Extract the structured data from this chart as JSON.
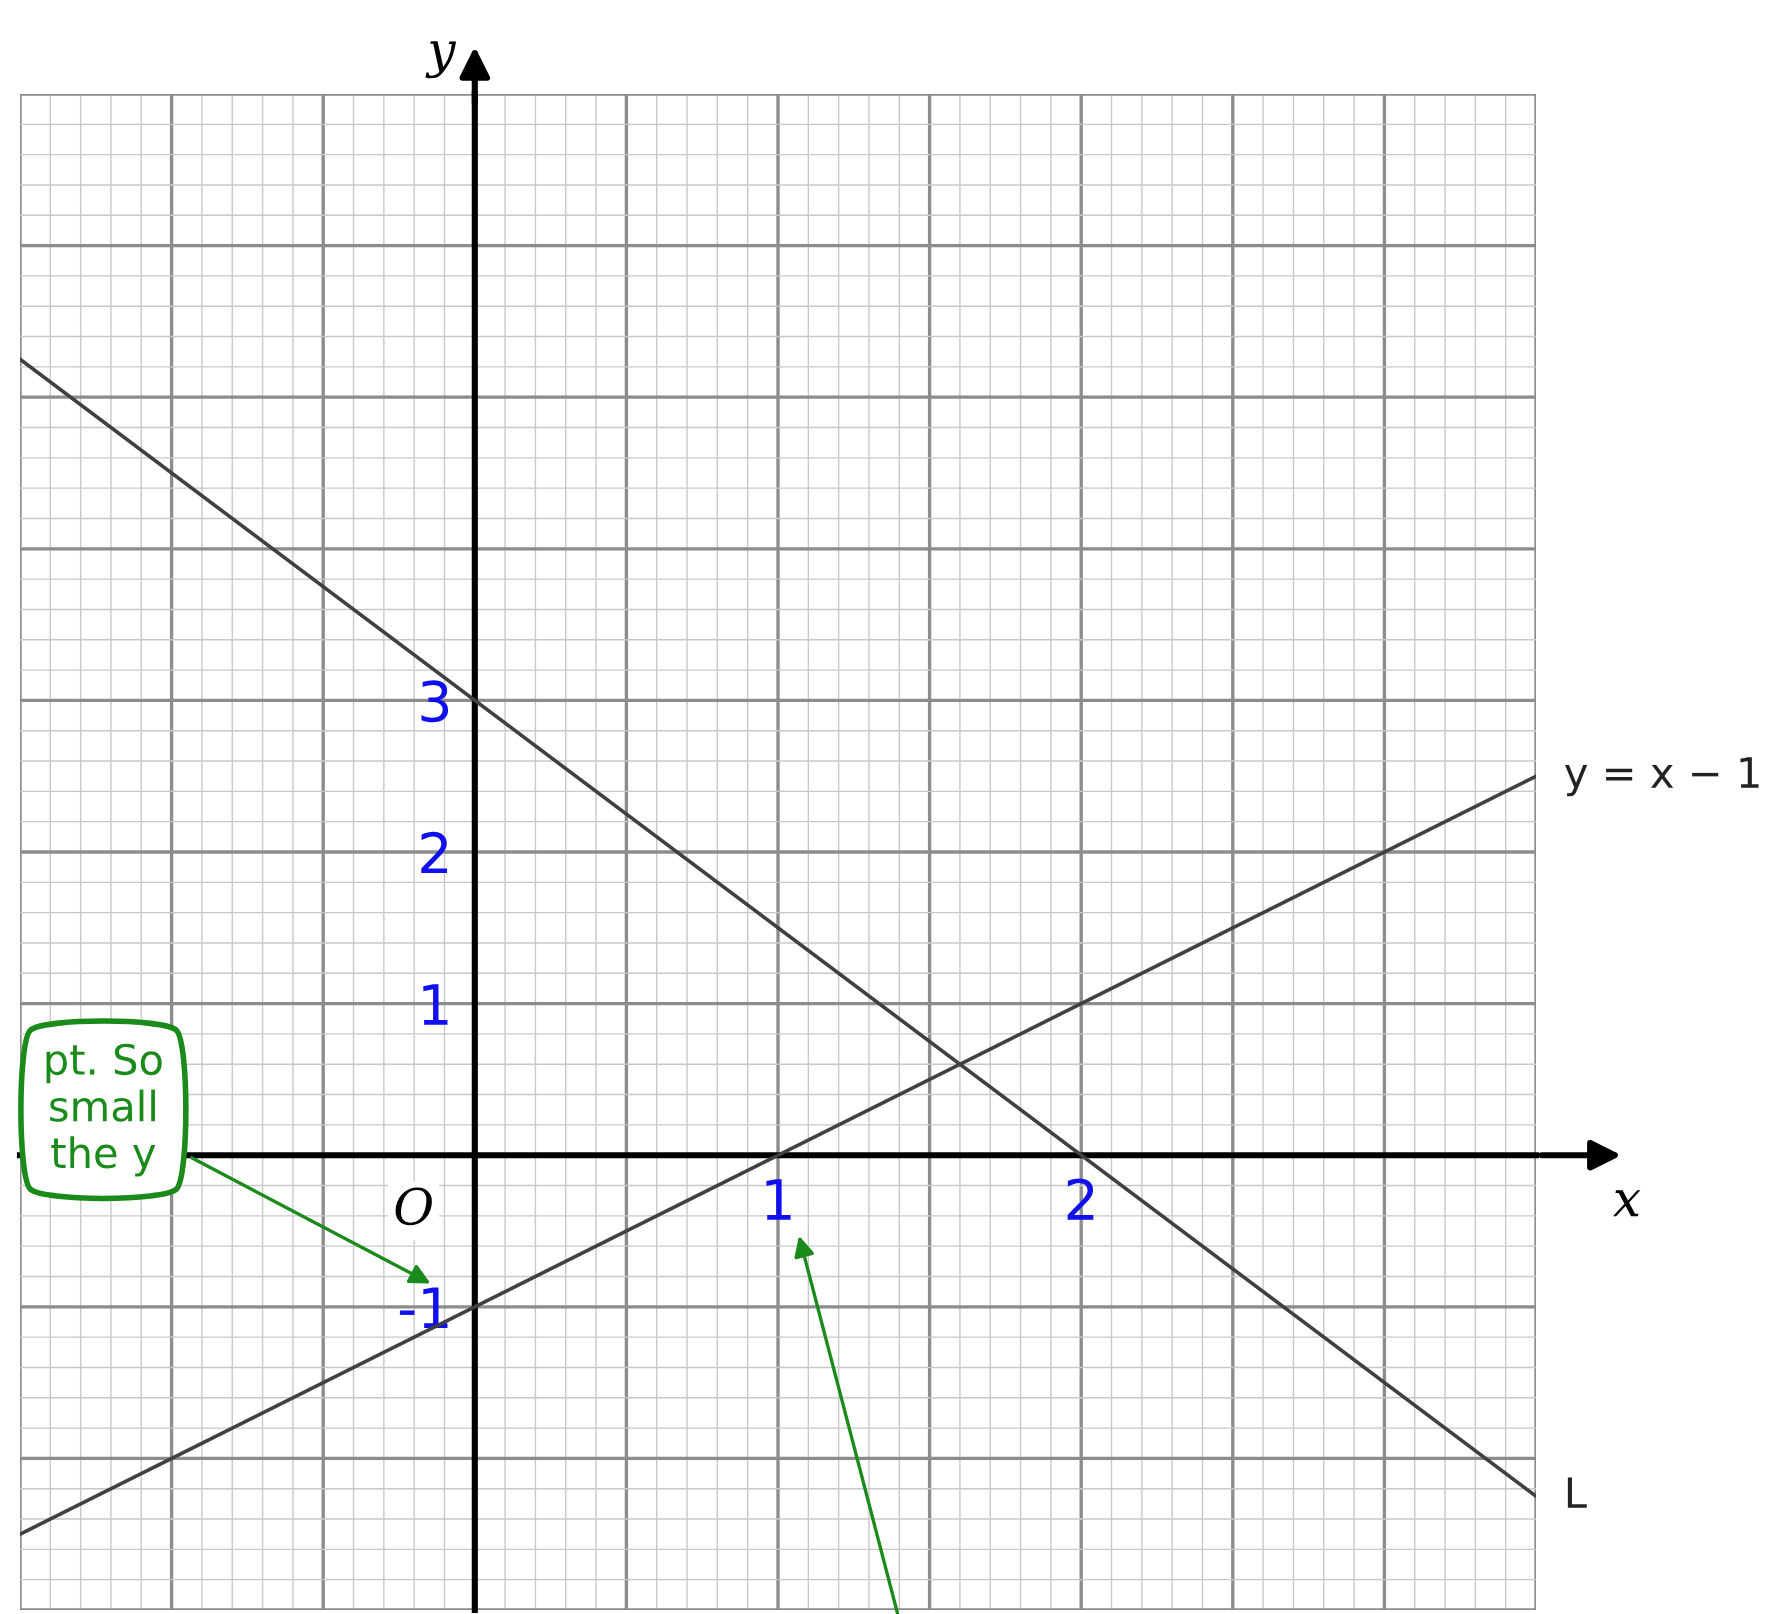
{
  "chart_data": {
    "type": "line",
    "xlabel": "x",
    "ylabel": "y",
    "x": [
      -1.5,
      3.5
    ],
    "series": [
      {
        "name": "y = x − 1",
        "color": "#404040",
        "values": [
          -2.5,
          2.5
        ]
      },
      {
        "name": "L",
        "color": "#404040",
        "values": [
          5.25,
          -2.25
        ]
      }
    ],
    "xlim": [
      -1.5,
      3.5
    ],
    "ylim": [
      -3,
      7
    ],
    "xticks": [
      1,
      2
    ],
    "yticks": [
      -1,
      1,
      2,
      3
    ],
    "grid": true,
    "legend": false,
    "marker": "none",
    "line_style": "solid",
    "annotations": [
      "O",
      "pt. So\nsmall\nthe y"
    ]
  }
}
